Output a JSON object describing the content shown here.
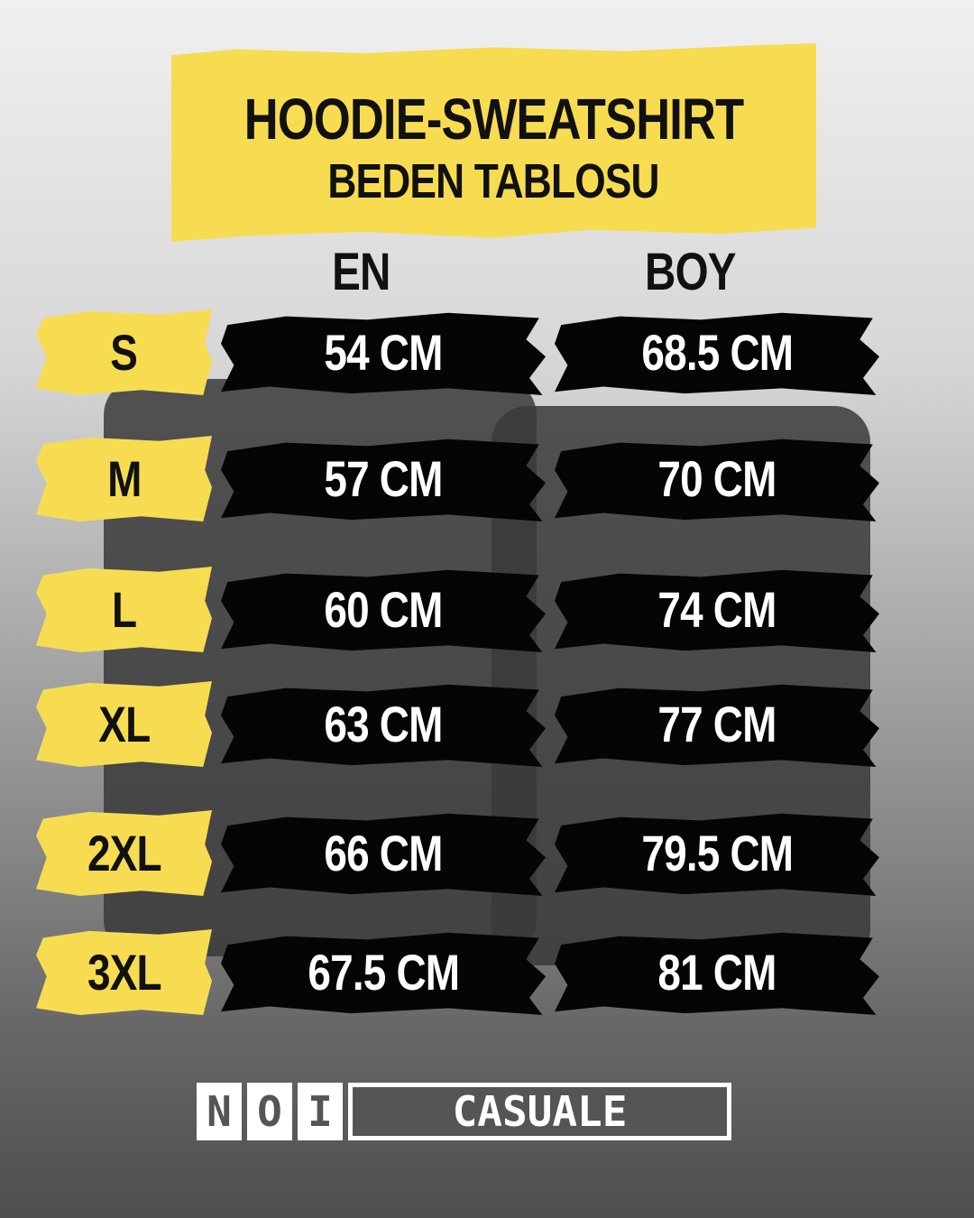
{
  "title": {
    "line1": "HOODIE-SWEATSHIRT",
    "line2": "BEDEN TABLOSU"
  },
  "columns": {
    "en": "EN",
    "boy": "BOY"
  },
  "rows": [
    {
      "size": "S",
      "en": "54 CM",
      "boy": "68.5 CM"
    },
    {
      "size": "M",
      "en": "57 CM",
      "boy": "70 CM"
    },
    {
      "size": "L",
      "en": "60 CM",
      "boy": "74 CM"
    },
    {
      "size": "XL",
      "en": "63 CM",
      "boy": "77 CM"
    },
    {
      "size": "2XL",
      "en": "66 CM",
      "boy": "79.5 CM"
    },
    {
      "size": "3XL",
      "en": "67.5 CM",
      "boy": "81 CM"
    }
  ],
  "logo": {
    "part1": [
      "N",
      "O",
      "I"
    ],
    "part2": "CASUALE"
  },
  "colors": {
    "accent": "#f7dc52",
    "brush": "#050505"
  }
}
